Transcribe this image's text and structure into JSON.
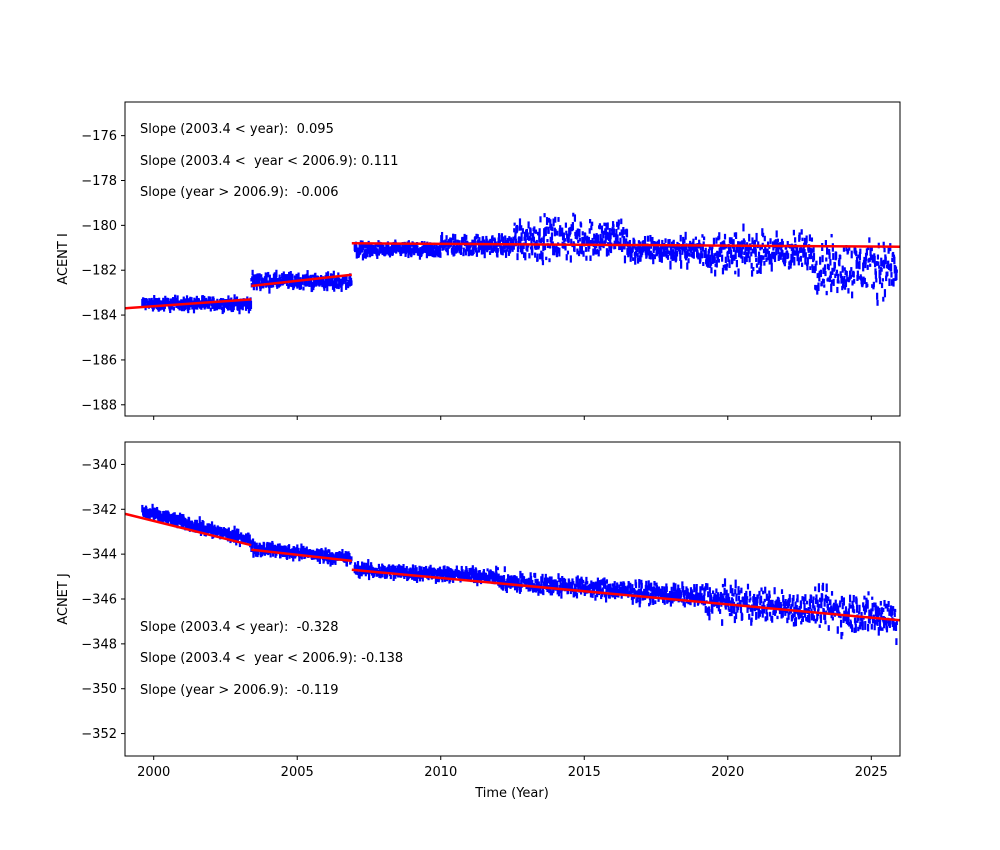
{
  "chart_data": [
    {
      "type": "scatter",
      "ylabel": "ACENT I",
      "xlabel": "",
      "xlim": [
        1999.0,
        2026.0
      ],
      "ylim": [
        -188.5,
        -174.5
      ],
      "xticks": [
        2000,
        2005,
        2010,
        2015,
        2020,
        2025
      ],
      "show_xtick_labels": false,
      "yticks": [
        -176,
        -178,
        -180,
        -182,
        -184,
        -186,
        -188
      ],
      "annotations": [
        "Slope (2003.4 < year):  0.095",
        "Slope (2003.4 <  year < 2006.9): 0.111",
        "Slope (year > 2006.9):  -0.006"
      ],
      "series": [
        {
          "color": "#0000ff",
          "marker": "point",
          "segments": [
            {
              "x0": 1999.6,
              "x1": 2003.4,
              "center": -183.5,
              "spread": 0.35
            },
            {
              "x0": 2003.4,
              "x1": 2006.9,
              "center": -182.5,
              "spread": 0.45
            },
            {
              "x0": 2007.0,
              "x1": 2010.0,
              "center": -181.1,
              "spread": 0.4
            },
            {
              "x0": 2010.0,
              "x1": 2012.5,
              "center": -180.9,
              "spread": 0.6
            },
            {
              "x0": 2012.5,
              "x1": 2016.5,
              "center": -180.6,
              "spread": 1.3
            },
            {
              "x0": 2016.5,
              "x1": 2019.0,
              "center": -181.1,
              "spread": 0.8
            },
            {
              "x0": 2019.0,
              "x1": 2023.0,
              "center": -181.2,
              "spread": 1.2
            },
            {
              "x0": 2023.0,
              "x1": 2025.9,
              "center": -181.9,
              "spread": 1.7
            }
          ]
        },
        {
          "color": "#ff0000",
          "marker": "line",
          "segments": [
            {
              "x": [
                1999.0,
                2003.4
              ],
              "y": [
                -183.7,
                -183.3
              ]
            },
            {
              "x": [
                2003.4,
                2006.9
              ],
              "y": [
                -182.7,
                -182.2
              ]
            },
            {
              "x": [
                2006.9,
                2026.0
              ],
              "y": [
                -180.8,
                -180.95
              ]
            }
          ]
        }
      ]
    },
    {
      "type": "scatter",
      "ylabel": "ACNET J",
      "xlabel": "Time (Year)",
      "xlim": [
        1999.0,
        2026.0
      ],
      "ylim": [
        -353.0,
        -339.0
      ],
      "xticks": [
        2000,
        2005,
        2010,
        2015,
        2020,
        2025
      ],
      "show_xtick_labels": true,
      "yticks": [
        -340,
        -342,
        -344,
        -346,
        -348,
        -350,
        -352
      ],
      "annotations": [
        "Slope (2003.4 < year):  -0.328",
        "Slope (2003.4 <  year < 2006.9): -0.138",
        "Slope (year > 2006.9):  -0.119"
      ],
      "series": [
        {
          "color": "#0000ff",
          "marker": "point",
          "segments": [
            {
              "x0": 1999.6,
              "x1": 2003.4,
              "start": -342.1,
              "end": -343.4,
              "spread": 0.35
            },
            {
              "x0": 2003.4,
              "x1": 2006.9,
              "start": -343.7,
              "end": -344.2,
              "spread": 0.35
            },
            {
              "x0": 2007.0,
              "x1": 2012.0,
              "start": -344.7,
              "end": -345.0,
              "spread": 0.4
            },
            {
              "x0": 2012.0,
              "x1": 2019.0,
              "start": -345.2,
              "end": -345.9,
              "spread": 0.6
            },
            {
              "x0": 2019.0,
              "x1": 2023.0,
              "start": -346.0,
              "end": -346.5,
              "spread": 1.0
            },
            {
              "x0": 2023.0,
              "x1": 2025.9,
              "start": -346.4,
              "end": -346.8,
              "spread": 1.3
            }
          ]
        },
        {
          "color": "#ff0000",
          "marker": "line",
          "segments": [
            {
              "x": [
                1999.0,
                2003.4
              ],
              "y": [
                -342.2,
                -343.6
              ]
            },
            {
              "x": [
                2003.4,
                2006.9
              ],
              "y": [
                -343.8,
                -344.3
              ]
            },
            {
              "x": [
                2006.9,
                2026.0
              ],
              "y": [
                -344.7,
                -346.95
              ]
            }
          ]
        }
      ]
    }
  ]
}
